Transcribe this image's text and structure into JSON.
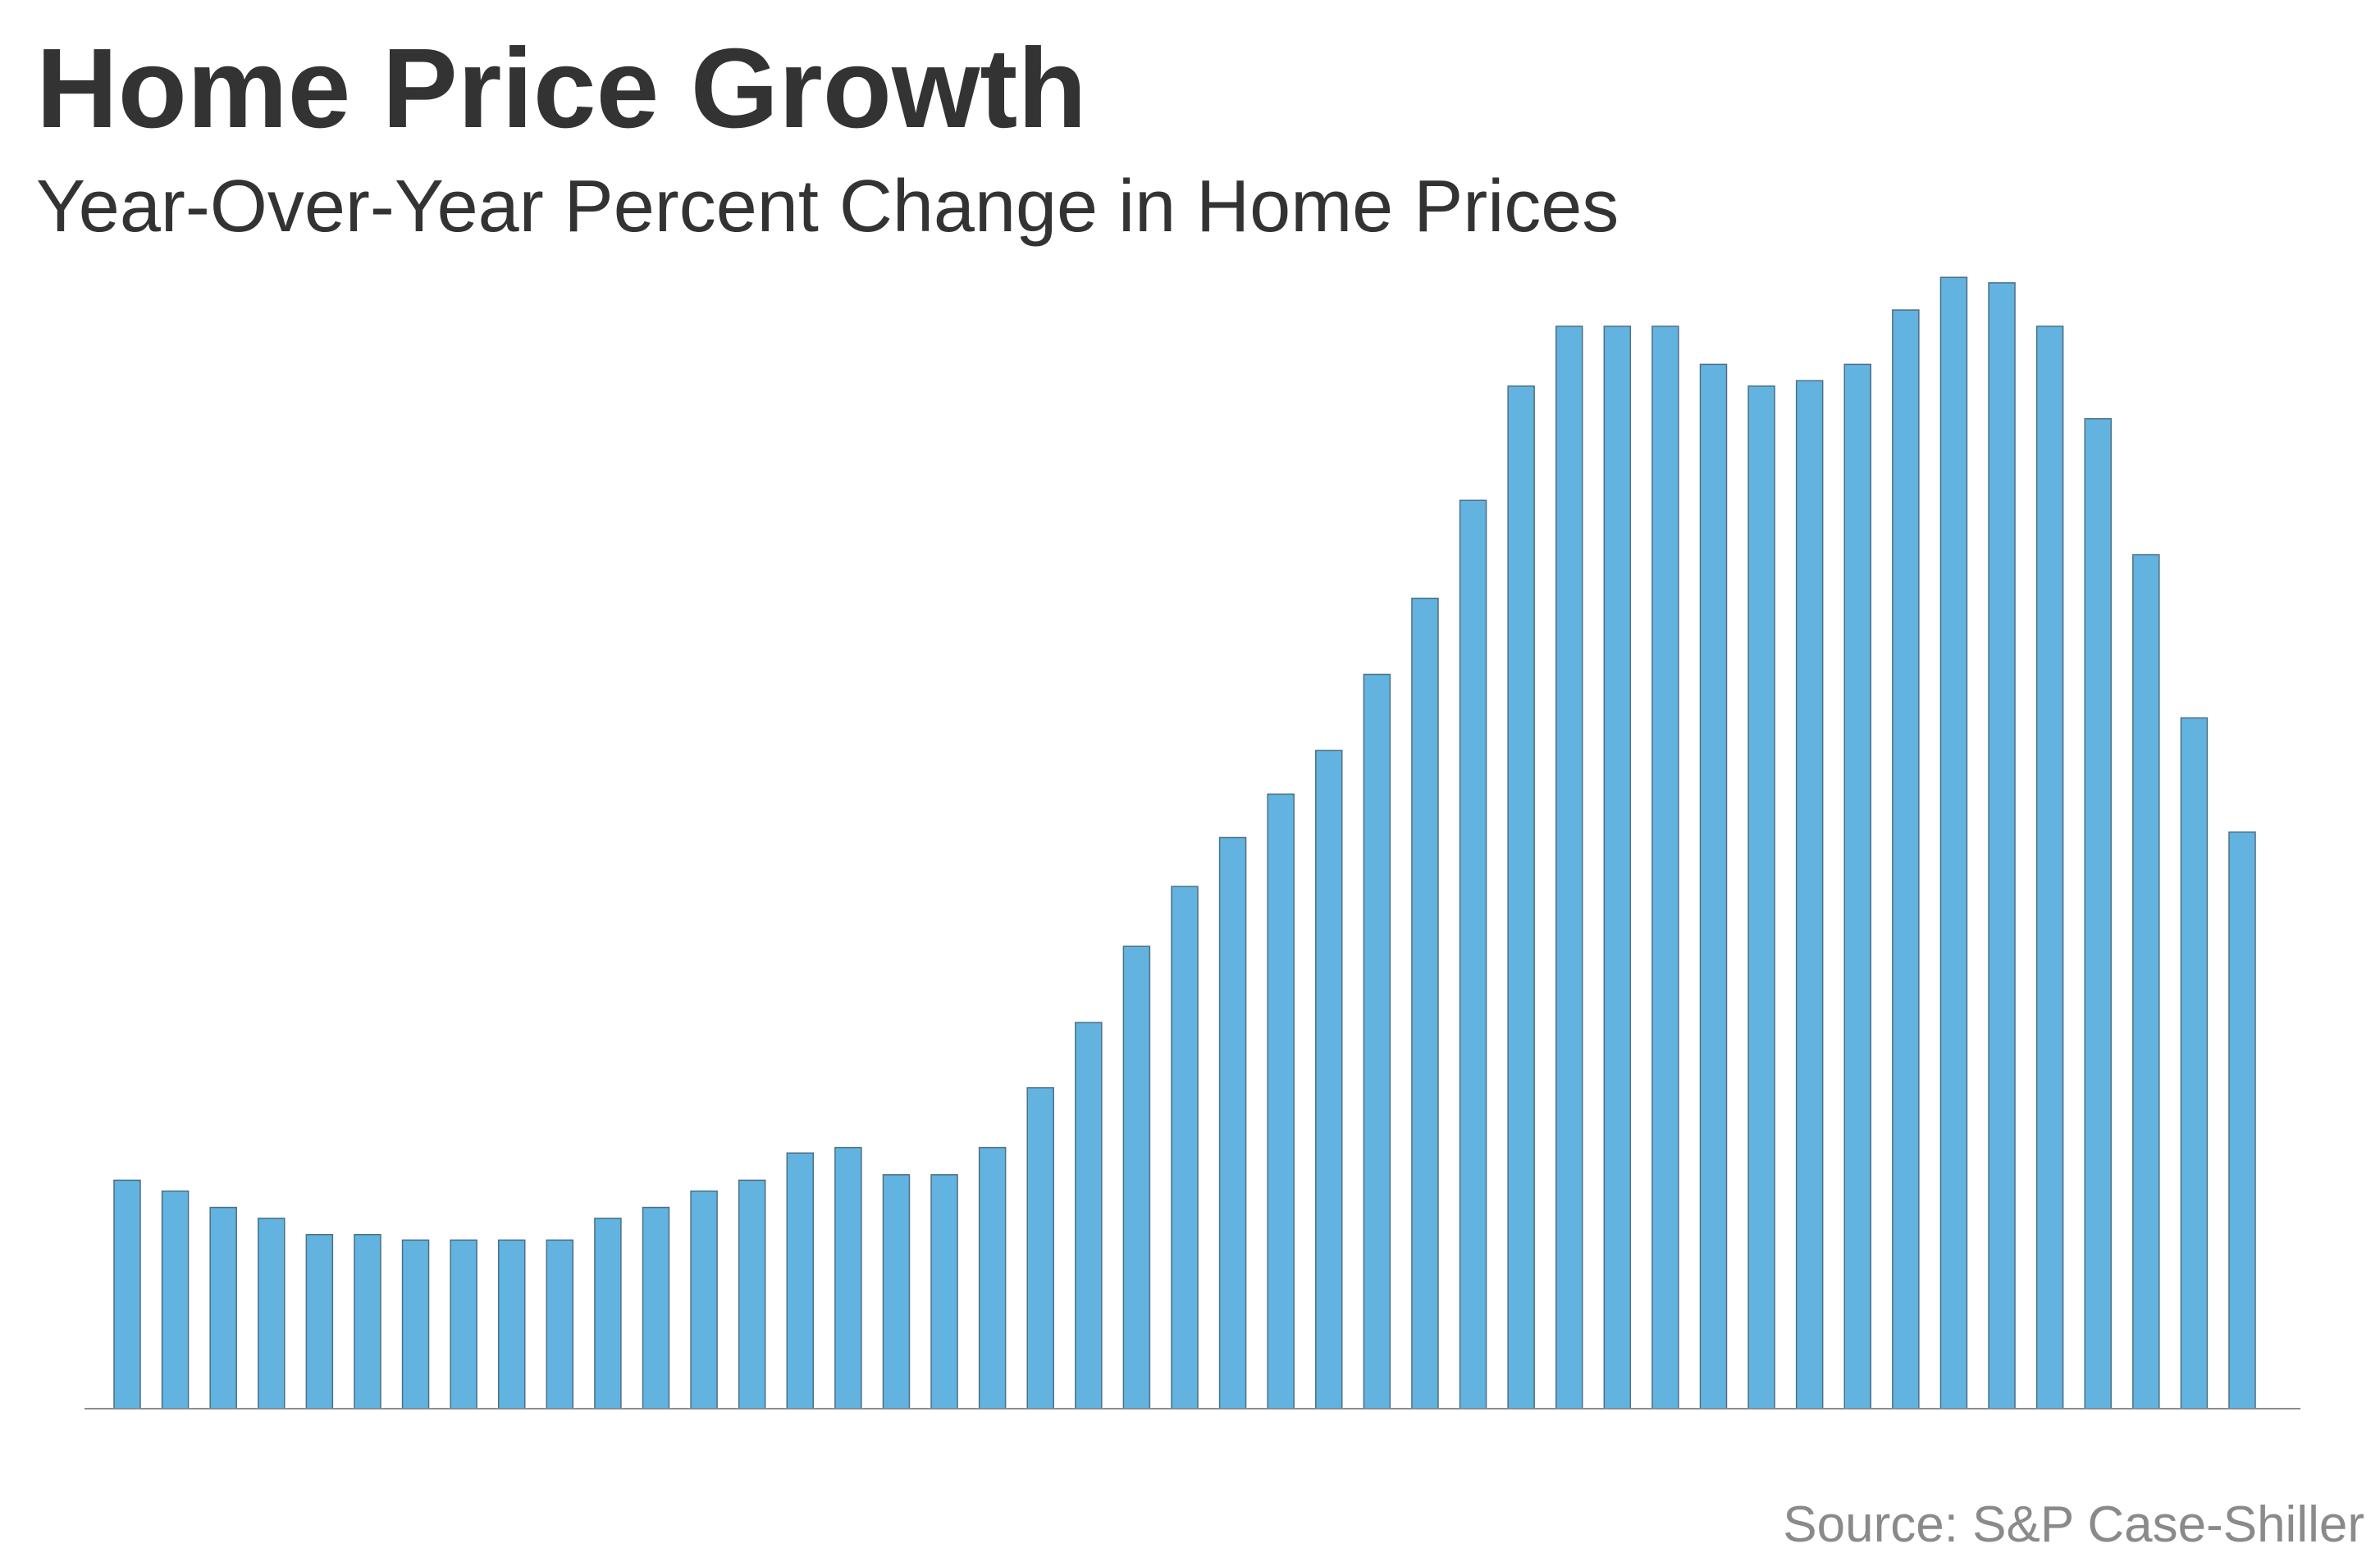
{
  "chart_data": {
    "type": "bar",
    "title": "Home Price Growth",
    "subtitle": "Year-Over-Year Percent Change in Home Prices",
    "source": "Source: S&P Case-Shiller",
    "values": [
      4.2,
      4.0,
      3.7,
      3.5,
      3.2,
      3.2,
      3.1,
      3.1,
      3.1,
      3.1,
      3.5,
      3.7,
      4.0,
      4.2,
      4.7,
      4.8,
      4.3,
      4.3,
      4.8,
      5.9,
      7.1,
      8.5,
      9.6,
      10.5,
      11.3,
      12.1,
      13.5,
      14.9,
      16.7,
      18.8,
      19.9,
      19.9,
      19.9,
      19.2,
      18.8,
      18.9,
      19.2,
      20.2,
      20.8,
      20.7,
      19.9,
      18.2,
      15.7,
      12.7,
      10.6
    ],
    "color": "#62b3e0",
    "ylim": [
      0,
      21
    ]
  }
}
